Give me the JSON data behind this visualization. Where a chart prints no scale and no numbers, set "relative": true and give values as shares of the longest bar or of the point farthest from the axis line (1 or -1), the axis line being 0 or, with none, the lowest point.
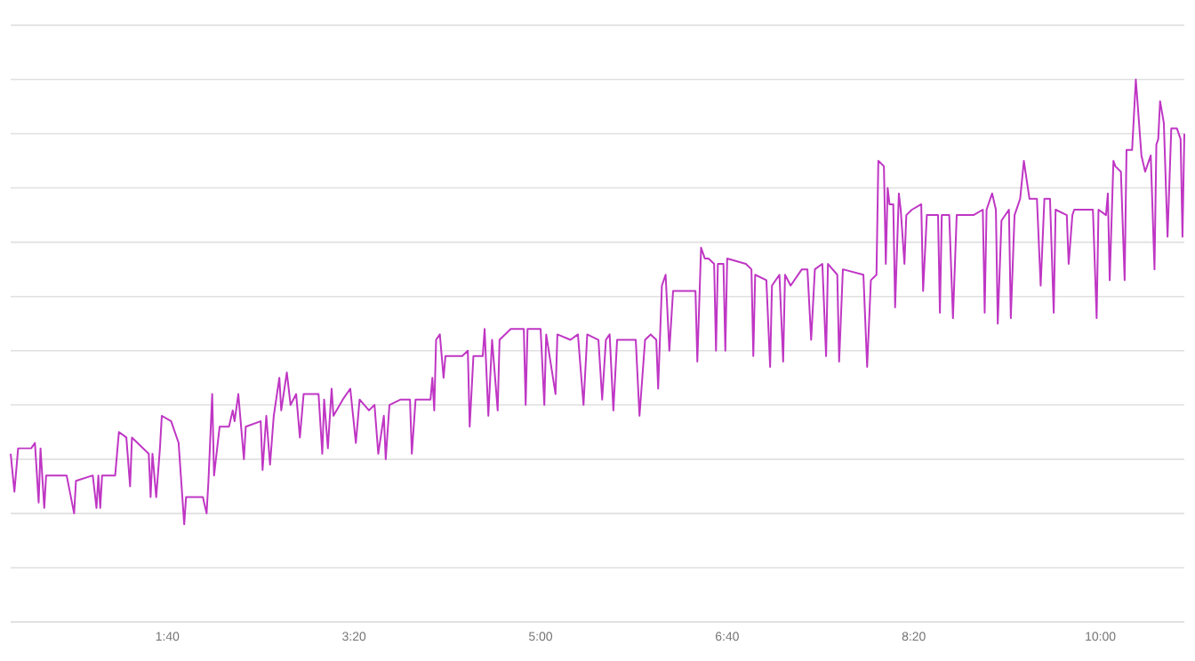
{
  "chart_data": {
    "type": "line",
    "relative": true,
    "grid": "y",
    "marker": "none",
    "line_style": "solid",
    "xlim": [
      16,
      645
    ],
    "xticks": [
      {
        "value": 100,
        "label": "1:40"
      },
      {
        "value": 200,
        "label": "3:20"
      },
      {
        "value": 300,
        "label": "5:00"
      },
      {
        "value": 400,
        "label": "6:40"
      },
      {
        "value": 500,
        "label": "8:20"
      },
      {
        "value": 600,
        "label": "10:00"
      }
    ],
    "series": [
      {
        "color": "#bf36c4",
        "x": [
          16,
          18,
          20,
          27,
          29,
          31,
          32,
          34,
          35,
          46,
          50,
          51,
          60,
          62,
          63,
          64,
          65,
          72,
          74,
          78,
          80,
          81,
          90,
          91,
          92,
          94,
          96,
          97,
          102,
          106,
          109,
          110,
          119,
          121,
          122,
          124,
          125,
          128,
          133,
          135,
          136,
          138,
          141,
          142,
          150,
          151,
          153,
          155,
          157,
          160,
          161,
          164,
          166,
          169,
          171,
          173,
          181,
          183,
          184,
          186,
          188,
          189,
          194,
          198,
          201,
          203,
          208,
          211,
          213,
          216,
          217,
          219,
          225,
          230,
          231,
          233,
          241,
          242,
          243,
          244,
          246,
          248,
          249,
          258,
          261,
          262,
          264,
          269,
          270,
          272,
          274,
          277,
          278,
          284,
          291,
          292,
          293,
          300,
          302,
          303,
          308,
          309,
          316,
          320,
          323,
          325,
          331,
          333,
          335,
          337,
          339,
          341,
          351,
          353,
          356,
          359,
          362,
          363,
          365,
          367,
          369,
          371,
          376,
          383,
          384,
          386,
          388,
          390,
          393,
          394,
          395,
          398,
          399,
          400,
          410,
          413,
          414,
          415,
          421,
          423,
          424,
          428,
          430,
          431,
          434,
          440,
          443,
          445,
          447,
          451,
          453,
          454,
          459,
          460,
          462,
          473,
          475,
          477,
          480,
          481,
          484,
          485,
          486,
          487,
          489,
          490,
          492,
          493,
          495,
          496,
          499,
          504,
          505,
          507,
          513,
          514,
          515,
          519,
          521,
          523,
          532,
          537,
          538,
          539,
          542,
          544,
          545,
          547,
          551,
          552,
          554,
          557,
          559,
          562,
          566,
          568,
          570,
          573,
          575,
          576,
          582,
          583,
          585,
          586,
          596,
          598,
          599,
          603,
          604,
          605,
          607,
          608,
          611,
          613,
          614,
          617,
          619,
          622,
          624,
          627,
          629,
          630,
          631,
          632,
          634,
          636,
          638,
          641,
          643,
          644,
          645
        ],
        "values": [
          0.31,
          0.24,
          0.32,
          0.32,
          0.33,
          0.22,
          0.32,
          0.21,
          0.27,
          0.27,
          0.2,
          0.26,
          0.27,
          0.21,
          0.27,
          0.21,
          0.27,
          0.27,
          0.35,
          0.34,
          0.25,
          0.34,
          0.31,
          0.23,
          0.31,
          0.23,
          0.32,
          0.38,
          0.37,
          0.33,
          0.18,
          0.23,
          0.23,
          0.2,
          0.26,
          0.42,
          0.27,
          0.36,
          0.36,
          0.39,
          0.37,
          0.42,
          0.3,
          0.36,
          0.37,
          0.28,
          0.38,
          0.29,
          0.38,
          0.45,
          0.39,
          0.46,
          0.4,
          0.42,
          0.34,
          0.42,
          0.42,
          0.31,
          0.41,
          0.32,
          0.43,
          0.38,
          0.41,
          0.43,
          0.33,
          0.41,
          0.39,
          0.4,
          0.31,
          0.38,
          0.3,
          0.4,
          0.41,
          0.41,
          0.31,
          0.41,
          0.41,
          0.45,
          0.39,
          0.52,
          0.53,
          0.45,
          0.49,
          0.49,
          0.5,
          0.36,
          0.49,
          0.49,
          0.54,
          0.38,
          0.52,
          0.39,
          0.52,
          0.54,
          0.54,
          0.4,
          0.54,
          0.54,
          0.4,
          0.53,
          0.42,
          0.53,
          0.52,
          0.53,
          0.4,
          0.53,
          0.52,
          0.41,
          0.52,
          0.53,
          0.39,
          0.52,
          0.52,
          0.38,
          0.52,
          0.53,
          0.52,
          0.43,
          0.62,
          0.64,
          0.5,
          0.61,
          0.61,
          0.61,
          0.48,
          0.69,
          0.67,
          0.67,
          0.66,
          0.5,
          0.66,
          0.66,
          0.5,
          0.67,
          0.66,
          0.65,
          0.49,
          0.64,
          0.63,
          0.47,
          0.62,
          0.64,
          0.48,
          0.64,
          0.62,
          0.65,
          0.65,
          0.52,
          0.65,
          0.66,
          0.49,
          0.66,
          0.64,
          0.48,
          0.65,
          0.64,
          0.47,
          0.63,
          0.64,
          0.85,
          0.84,
          0.66,
          0.8,
          0.77,
          0.77,
          0.58,
          0.79,
          0.76,
          0.66,
          0.75,
          0.76,
          0.77,
          0.61,
          0.75,
          0.75,
          0.57,
          0.75,
          0.75,
          0.56,
          0.75,
          0.75,
          0.76,
          0.57,
          0.76,
          0.79,
          0.76,
          0.55,
          0.74,
          0.76,
          0.56,
          0.75,
          0.78,
          0.85,
          0.78,
          0.78,
          0.62,
          0.78,
          0.78,
          0.57,
          0.76,
          0.75,
          0.66,
          0.75,
          0.76,
          0.76,
          0.56,
          0.76,
          0.75,
          0.79,
          0.63,
          0.85,
          0.84,
          0.83,
          0.63,
          0.87,
          0.87,
          1.0,
          0.86,
          0.83,
          0.86,
          0.65,
          0.88,
          0.89,
          0.96,
          0.92,
          0.71,
          0.91,
          0.91,
          0.89,
          0.71,
          0.9
        ]
      }
    ]
  }
}
